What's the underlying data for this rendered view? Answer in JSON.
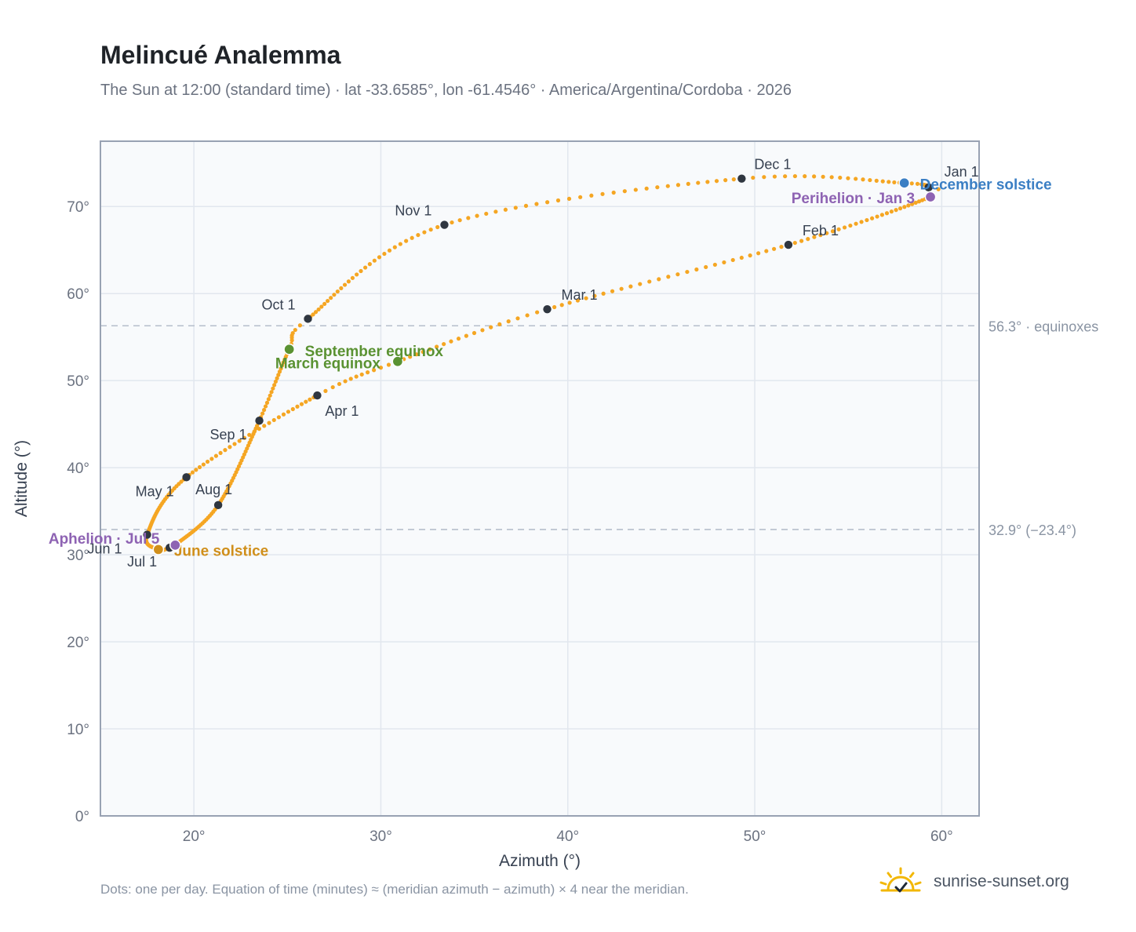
{
  "header": {
    "title": "Melincué Analemma",
    "subtitle": "The Sun at 12:00 (standard time) · lat -33.6585°, lon -61.4546° · America/Argentina/Cordoba · 2026"
  },
  "footer": {
    "note": "Dots: one per day. Equation of time (minutes) ≈ (meridian azimuth − azimuth) × 4 near the meridian.",
    "brand": "sunrise-sunset.org"
  },
  "colors": {
    "curve": "#f5a623",
    "month_marker": "#2f3640",
    "equinox": "#5a9232",
    "june_solstice": "#d08f1b",
    "december_solstice": "#3b7fc4",
    "apsis": "#8e63b3",
    "reference_line": "#b6bfcc",
    "plot_bg": "#f8fafc",
    "grid": "#e2e7ee",
    "axis": "#98a2b3"
  },
  "chart_data": {
    "type": "scatter",
    "xlabel": "Azimuth (°)",
    "ylabel": "Altitude (°)",
    "xlim": [
      15,
      62
    ],
    "ylim": [
      0,
      77.5
    ],
    "x_ticks": [
      20,
      30,
      40,
      50,
      60
    ],
    "x_tick_labels": [
      "20°",
      "30°",
      "40°",
      "50°",
      "60°"
    ],
    "y_ticks": [
      0,
      10,
      20,
      30,
      40,
      50,
      60,
      70
    ],
    "y_tick_labels": [
      "0°",
      "10°",
      "20°",
      "30°",
      "40°",
      "50°",
      "60°",
      "70°"
    ],
    "grid": true,
    "marker_note": "one dot per day",
    "key_points": [
      {
        "day": 0,
        "az": 59.3,
        "alt": 72.2
      },
      {
        "day": 2,
        "az": 59.4,
        "alt": 71.1
      },
      {
        "day": 31,
        "az": 51.8,
        "alt": 65.6
      },
      {
        "day": 59,
        "az": 38.9,
        "alt": 58.2
      },
      {
        "day": 78,
        "az": 30.9,
        "alt": 52.2
      },
      {
        "day": 90,
        "az": 26.6,
        "alt": 48.3
      },
      {
        "day": 120,
        "az": 19.6,
        "alt": 38.9
      },
      {
        "day": 151,
        "az": 17.5,
        "alt": 32.3
      },
      {
        "day": 171,
        "az": 18.1,
        "alt": 30.6
      },
      {
        "day": 181,
        "az": 18.7,
        "alt": 30.8
      },
      {
        "day": 185,
        "az": 19.0,
        "alt": 31.1
      },
      {
        "day": 212,
        "az": 21.3,
        "alt": 35.7
      },
      {
        "day": 243,
        "az": 23.5,
        "alt": 45.4
      },
      {
        "day": 265,
        "az": 25.1,
        "alt": 53.6
      },
      {
        "day": 273,
        "az": 26.1,
        "alt": 57.1
      },
      {
        "day": 304,
        "az": 33.4,
        "alt": 67.9
      },
      {
        "day": 334,
        "az": 49.3,
        "alt": 73.2
      },
      {
        "day": 354,
        "az": 58.0,
        "alt": 72.7
      },
      {
        "day": 365,
        "az": 59.3,
        "alt": 72.2
      }
    ],
    "month_markers": [
      {
        "label": "Jan 1",
        "az": 59.3,
        "alt": 72.2
      },
      {
        "label": "Feb 1",
        "az": 51.8,
        "alt": 65.6
      },
      {
        "label": "Mar 1",
        "az": 38.9,
        "alt": 58.2
      },
      {
        "label": "Apr 1",
        "az": 26.6,
        "alt": 48.3
      },
      {
        "label": "May 1",
        "az": 19.6,
        "alt": 38.9
      },
      {
        "label": "Jun 1",
        "az": 17.5,
        "alt": 32.3
      },
      {
        "label": "Jul 1",
        "az": 18.7,
        "alt": 30.8
      },
      {
        "label": "Aug 1",
        "az": 21.3,
        "alt": 35.7
      },
      {
        "label": "Sep 1",
        "az": 23.5,
        "alt": 45.4
      },
      {
        "label": "Oct 1",
        "az": 26.1,
        "alt": 57.1
      },
      {
        "label": "Nov 1",
        "az": 33.4,
        "alt": 67.9
      },
      {
        "label": "Dec 1",
        "az": 49.3,
        "alt": 73.2
      }
    ],
    "events": [
      {
        "label": "March equinox",
        "type": "equinox",
        "az": 30.9,
        "alt": 52.2
      },
      {
        "label": "September equinox",
        "type": "equinox",
        "az": 25.1,
        "alt": 53.6
      },
      {
        "label": "June solstice",
        "type": "june_solstice",
        "az": 18.1,
        "alt": 30.6
      },
      {
        "label": "December solstice",
        "type": "december_solstice",
        "az": 58.0,
        "alt": 72.7
      },
      {
        "label": "Perihelion · Jan 3",
        "type": "apsis",
        "az": 59.4,
        "alt": 71.1
      },
      {
        "label": "Aphelion · Jul 5",
        "type": "apsis",
        "az": 19.0,
        "alt": 31.1
      }
    ],
    "reference_lines": [
      {
        "alt": 56.3,
        "label": "56.3° · equinoxes"
      },
      {
        "alt": 32.9,
        "label": "32.9° (−23.4°)"
      }
    ]
  }
}
